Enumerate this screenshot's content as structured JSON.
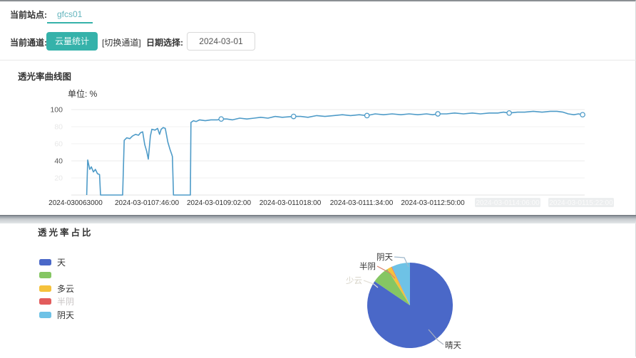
{
  "header": {
    "site_label": "当前站点:",
    "site_value": "gfcs01",
    "channel_label": "当前通道:",
    "channel_button_label": "云量统计",
    "switch_channel_label": "[切换通道]",
    "date_label": "日期选择:",
    "date_value": "2024-03-01"
  },
  "line_section": {
    "title": "透光率曲线图",
    "unit": "单位: %"
  },
  "pie_section": {
    "title": "透光率占比"
  },
  "accent": {
    "teal": "#35b2aa",
    "line_blue": "#4e9bc8"
  },
  "chart_data": [
    {
      "type": "line",
      "title": "透光率曲线图",
      "ylabel": "单位: %",
      "ylim": [
        0,
        100
      ],
      "grid": true,
      "line_color": "#4e9bc8",
      "grid_color": "#ebebeb",
      "yticks": [
        {
          "value": 100,
          "faded": false
        },
        {
          "value": 80,
          "faded": true
        },
        {
          "value": 60,
          "faded": true
        },
        {
          "value": 40,
          "faded": false
        },
        {
          "value": 20,
          "faded": true
        }
      ],
      "xticks": [
        {
          "label": "2024-030063000",
          "faded": false
        },
        {
          "label": "2024-03-0107:46:00",
          "faded": false
        },
        {
          "label": "2024-03-0109:02:00",
          "faded": false
        },
        {
          "label": "2024-03-011018:00",
          "faded": false
        },
        {
          "label": "2024-03-0111:34:00",
          "faded": false
        },
        {
          "label": "2024-03-0112:50:00",
          "faded": false
        },
        {
          "label": "2024-03-0114:06:00",
          "faded": true
        },
        {
          "label": "2024-03-0115:22:00",
          "faded": true
        }
      ],
      "points": [
        [
          0.03,
          0
        ],
        [
          0.032,
          41
        ],
        [
          0.036,
          30
        ],
        [
          0.039,
          33
        ],
        [
          0.043,
          27
        ],
        [
          0.047,
          30
        ],
        [
          0.051,
          25
        ],
        [
          0.055,
          24
        ],
        [
          0.057,
          0
        ],
        [
          0.1,
          0
        ],
        [
          0.103,
          64
        ],
        [
          0.108,
          67
        ],
        [
          0.114,
          66
        ],
        [
          0.119,
          69
        ],
        [
          0.125,
          71
        ],
        [
          0.131,
          70
        ],
        [
          0.135,
          73
        ],
        [
          0.139,
          74
        ],
        [
          0.143,
          59
        ],
        [
          0.147,
          51
        ],
        [
          0.15,
          42
        ],
        [
          0.154,
          69
        ],
        [
          0.157,
          77
        ],
        [
          0.163,
          76
        ],
        [
          0.168,
          78
        ],
        [
          0.172,
          71
        ],
        [
          0.175,
          77
        ],
        [
          0.179,
          79
        ],
        [
          0.183,
          78
        ],
        [
          0.188,
          62
        ],
        [
          0.192,
          54
        ],
        [
          0.196,
          47
        ],
        [
          0.197,
          45
        ],
        [
          0.199,
          0
        ],
        [
          0.232,
          0
        ],
        [
          0.233,
          85
        ],
        [
          0.238,
          87
        ],
        [
          0.243,
          86
        ],
        [
          0.25,
          88
        ],
        [
          0.261,
          87
        ],
        [
          0.272,
          88
        ],
        [
          0.285,
          88
        ],
        [
          0.292,
          89
        ],
        [
          0.303,
          89
        ],
        [
          0.314,
          88
        ],
        [
          0.328,
          90
        ],
        [
          0.342,
          89
        ],
        [
          0.356,
          90
        ],
        [
          0.369,
          91
        ],
        [
          0.383,
          90
        ],
        [
          0.397,
          92
        ],
        [
          0.411,
          91
        ],
        [
          0.433,
          92
        ],
        [
          0.447,
          92
        ],
        [
          0.461,
          91
        ],
        [
          0.478,
          93
        ],
        [
          0.494,
          92
        ],
        [
          0.511,
          93
        ],
        [
          0.528,
          94
        ],
        [
          0.544,
          93
        ],
        [
          0.561,
          94
        ],
        [
          0.576,
          93
        ],
        [
          0.592,
          95
        ],
        [
          0.608,
          94
        ],
        [
          0.625,
          95
        ],
        [
          0.642,
          94
        ],
        [
          0.658,
          95
        ],
        [
          0.675,
          94
        ],
        [
          0.692,
          95
        ],
        [
          0.704,
          94
        ],
        [
          0.714,
          95
        ],
        [
          0.731,
          95
        ],
        [
          0.747,
          96
        ],
        [
          0.764,
          95
        ],
        [
          0.781,
          96
        ],
        [
          0.797,
          95
        ],
        [
          0.814,
          96
        ],
        [
          0.831,
          96
        ],
        [
          0.842,
          97
        ],
        [
          0.853,
          96
        ],
        [
          0.869,
          97
        ],
        [
          0.883,
          97
        ],
        [
          0.9,
          98
        ],
        [
          0.917,
          97
        ],
        [
          0.933,
          98
        ],
        [
          0.946,
          98
        ],
        [
          0.958,
          97
        ],
        [
          0.968,
          95
        ],
        [
          0.979,
          94
        ],
        [
          0.988,
          95
        ],
        [
          0.996,
          94
        ]
      ],
      "markers": [
        [
          0.292,
          89
        ],
        [
          0.433,
          92
        ],
        [
          0.576,
          93
        ],
        [
          0.714,
          95
        ],
        [
          0.853,
          96
        ],
        [
          0.996,
          94
        ]
      ]
    },
    {
      "type": "pie",
      "title": "透光率占比",
      "slices": [
        {
          "label": "晴天",
          "value": 84.5,
          "color": "#4a68c8"
        },
        {
          "label": "少云",
          "value": 6.6,
          "color": "#85c663"
        },
        {
          "label": "多云",
          "value": 1.7,
          "color": "#f5c23c"
        },
        {
          "label": "半阴",
          "value": 0.2,
          "color": "#e25c5c"
        },
        {
          "label": "阴天",
          "value": 7.0,
          "color": "#6ec2e6"
        }
      ],
      "legend": [
        {
          "label": "天",
          "color": "#4a68c8",
          "faded": false
        },
        {
          "label": "",
          "color": "#85c663",
          "faded": false
        },
        {
          "label": "多云",
          "color": "#f5c23c",
          "faded": false
        },
        {
          "label": "半阴",
          "color": "#e25c5c",
          "faded": true
        },
        {
          "label": "阴天",
          "color": "#6ec2e6",
          "faded": false
        }
      ],
      "callouts": [
        {
          "text": "阴天",
          "tx": 111,
          "ty": 33,
          "anchor": "end",
          "color": "#333333",
          "leader": [
            [
              113,
              29
            ],
            [
              127,
              30
            ],
            [
              133,
              43
            ]
          ],
          "lcolor": "#9fb8cc"
        },
        {
          "text": "半阴",
          "tx": 87,
          "ty": 46,
          "anchor": "end",
          "color": "#333333",
          "leader": [
            [
              89,
              42
            ],
            [
              106,
              51
            ],
            [
              114,
              59
            ]
          ],
          "lcolor": "#d9806a"
        },
        {
          "text": "少云",
          "tx": 68,
          "ty": 66,
          "anchor": "end",
          "color": "#d6d2c6",
          "leader": [
            [
              70,
              62
            ],
            [
              84,
              67
            ],
            [
              90,
              72
            ]
          ],
          "lcolor": "#e3e0d8"
        },
        {
          "text": "晴天",
          "tx": 184,
          "ty": 157,
          "anchor": "start",
          "color": "#333333",
          "leader": [
            [
              161,
              131
            ],
            [
              174,
              146
            ],
            [
              182,
              152
            ]
          ],
          "lcolor": "#a8b0be"
        }
      ]
    }
  ]
}
